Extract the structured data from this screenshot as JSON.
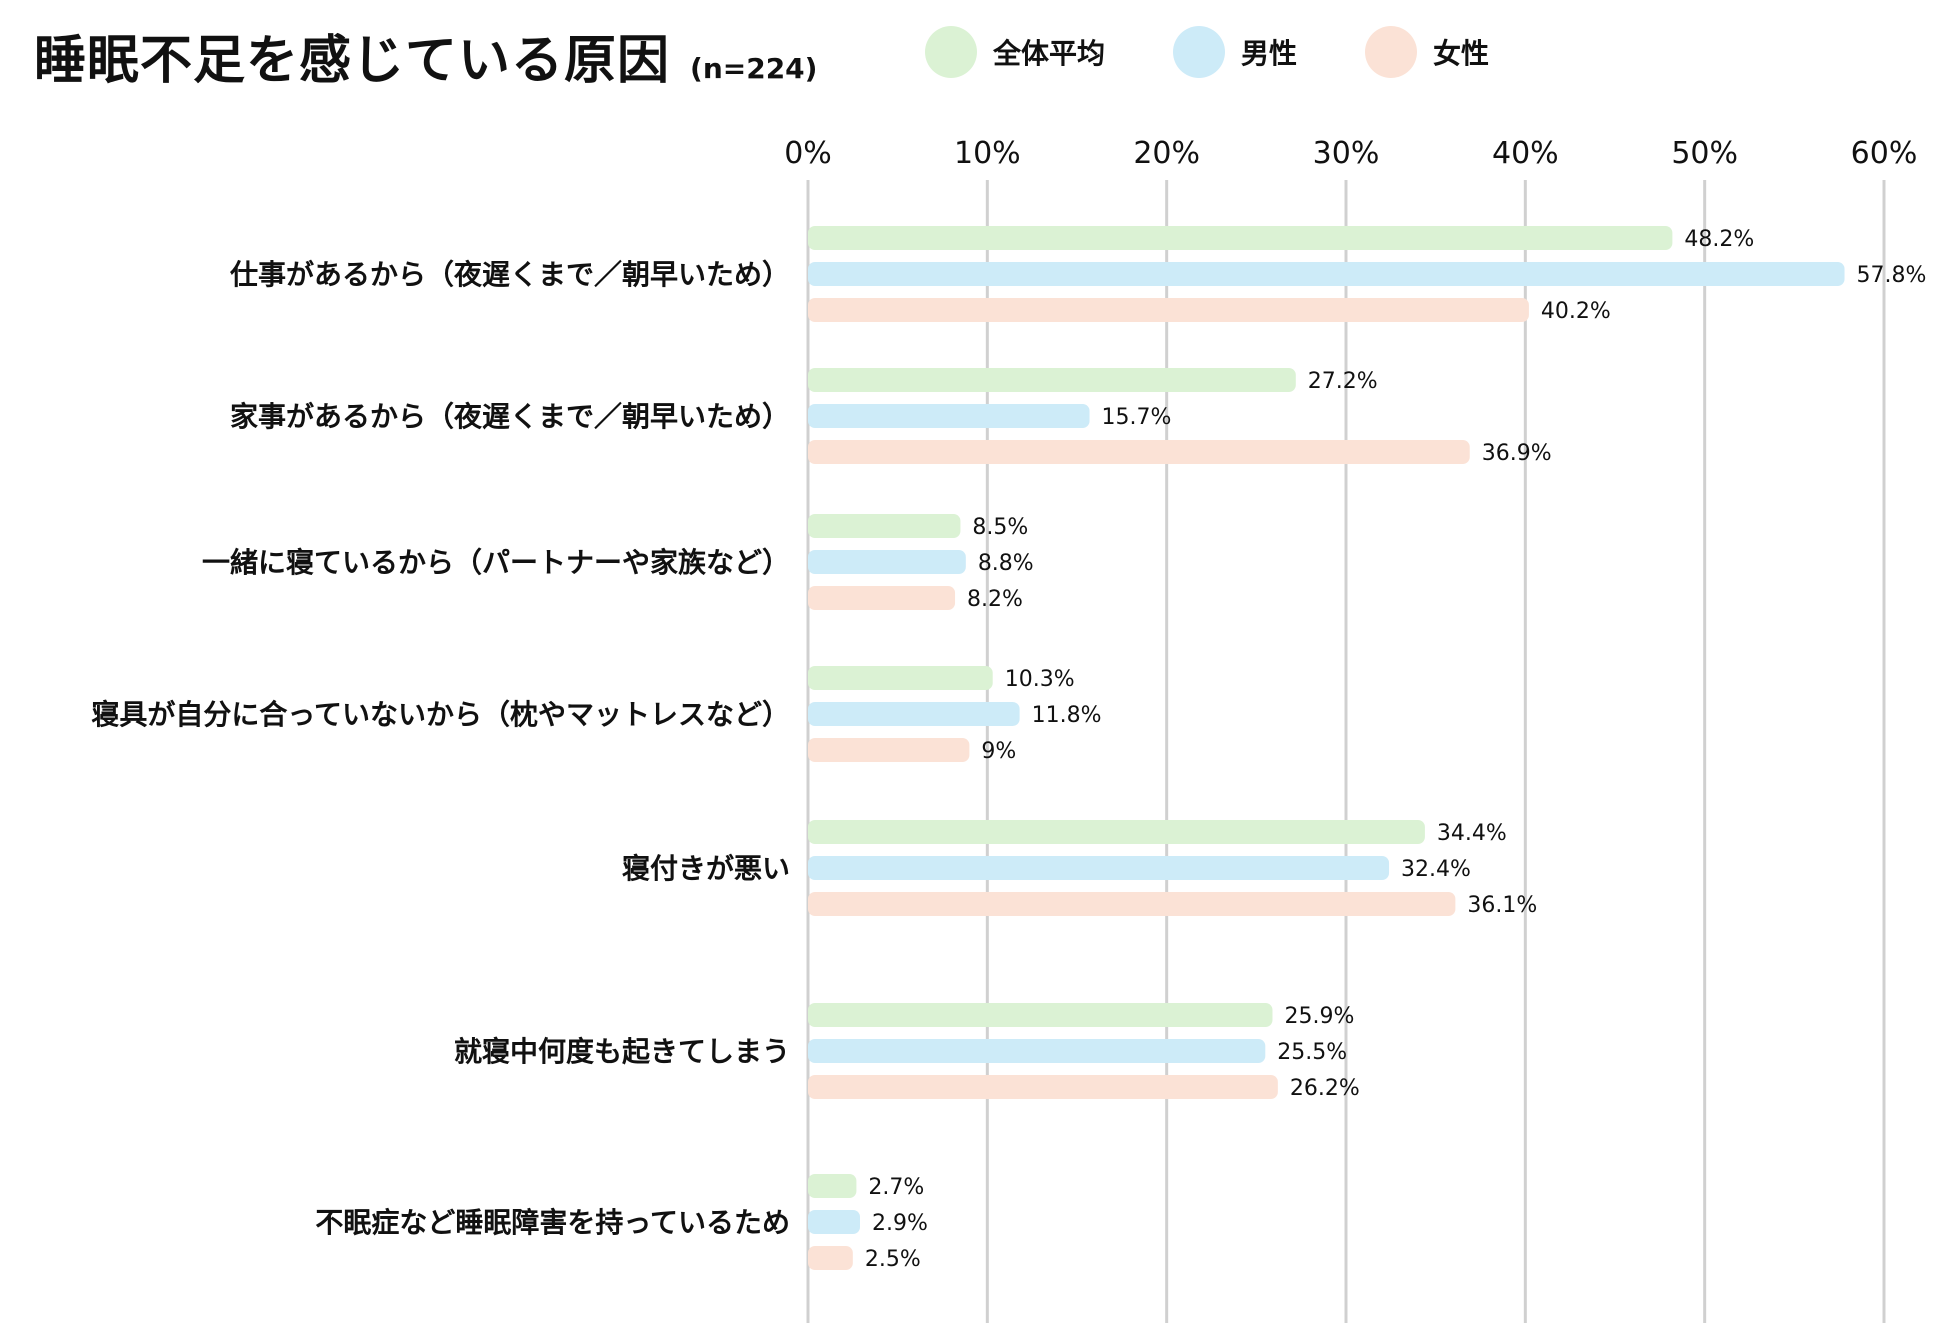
{
  "chart_data": {
    "type": "bar",
    "orientation": "horizontal",
    "title": "睡眠不足を感じている原因",
    "subtitle": "(n=224)",
    "xlim": [
      0,
      60
    ],
    "xticks": [
      0,
      10,
      20,
      30,
      40,
      50,
      60
    ],
    "tick_labels": [
      "0%",
      "10%",
      "20%",
      "30%",
      "40%",
      "50%",
      "60%"
    ],
    "grid": true,
    "legend_position": "top",
    "categories": [
      "仕事があるから（夜遅くまで／朝早いため）",
      "家事があるから（夜遅くまで／朝早いため）",
      "一緒に寝ているから（パートナーや家族など）",
      "寝具が自分に合っていないから（枕やマットレスなど）",
      "寝付きが悪い",
      "就寝中何度も起きてしまう",
      "不眠症など睡眠障害を持っているため"
    ],
    "series": [
      {
        "name": "全体平均",
        "color": "#dbf2d4",
        "values": [
          48.2,
          27.2,
          8.5,
          10.3,
          34.4,
          25.9,
          2.7
        ],
        "labels": [
          "48.2%",
          "27.2%",
          "8.5%",
          "10.3%",
          "34.4%",
          "25.9%",
          "2.7%"
        ]
      },
      {
        "name": "男性",
        "color": "#cdebf8",
        "values": [
          57.8,
          15.7,
          8.8,
          11.8,
          32.4,
          25.5,
          2.9
        ],
        "labels": [
          "57.8%",
          "15.7%",
          "8.8%",
          "11.8%",
          "32.4%",
          "25.5%",
          "2.9%"
        ]
      },
      {
        "name": "女性",
        "color": "#fbe2d6",
        "values": [
          40.2,
          36.9,
          8.2,
          9,
          36.1,
          26.2,
          2.5
        ],
        "labels": [
          "40.2%",
          "36.9%",
          "8.2%",
          "9%",
          "36.1%",
          "26.2%",
          "2.5%"
        ]
      }
    ]
  }
}
